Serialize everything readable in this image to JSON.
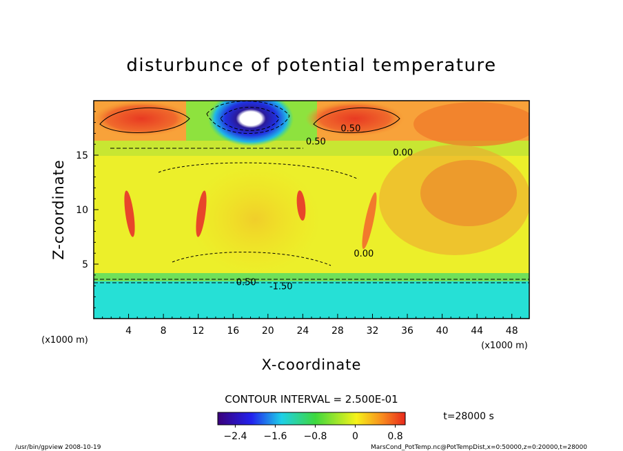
{
  "chart_data": {
    "type": "heatmap",
    "title": "disturbunce of potential temperature",
    "xlabel": "X-coordinate",
    "ylabel": "Z-coordinate",
    "x_unit": "(x1000 m)",
    "y_unit": "(x1000 m)",
    "xlim": [
      0,
      50
    ],
    "ylim": [
      0,
      20
    ],
    "x_ticks": [
      4,
      8,
      12,
      16,
      20,
      24,
      28,
      32,
      36,
      40,
      44,
      48
    ],
    "y_ticks": [
      5,
      10,
      15
    ],
    "contour_labels": [
      {
        "text": "0.50",
        "x": 29.5,
        "y": 17.5
      },
      {
        "text": "0.50",
        "x": 25.5,
        "y": 16.3
      },
      {
        "text": "0.00",
        "x": 35.5,
        "y": 15.3
      },
      {
        "text": "0.00",
        "x": 31.0,
        "y": 6.0
      },
      {
        "text": "0.50",
        "x": 17.5,
        "y": 3.4
      },
      {
        "text": "-1.50",
        "x": 21.5,
        "y": 3.0
      }
    ],
    "contour_interval_text": "CONTOUR INTERVAL = 2.500E-01",
    "colorbar": {
      "range": [
        -2.75,
        1.0
      ],
      "tick_values": [
        -2.4,
        -1.6,
        -0.8,
        0,
        0.8
      ],
      "tick_labels": [
        "−2.4",
        "−1.6",
        "−0.8",
        "0",
        "0.8"
      ]
    },
    "time_label": "t=28000 s",
    "footer_left": "/usr/bin/gpview   2008-10-19",
    "footer_right": "MarsCond_PotTemp.nc@PotTempDist,x=0:50000,z=0:20000,t=28000"
  }
}
